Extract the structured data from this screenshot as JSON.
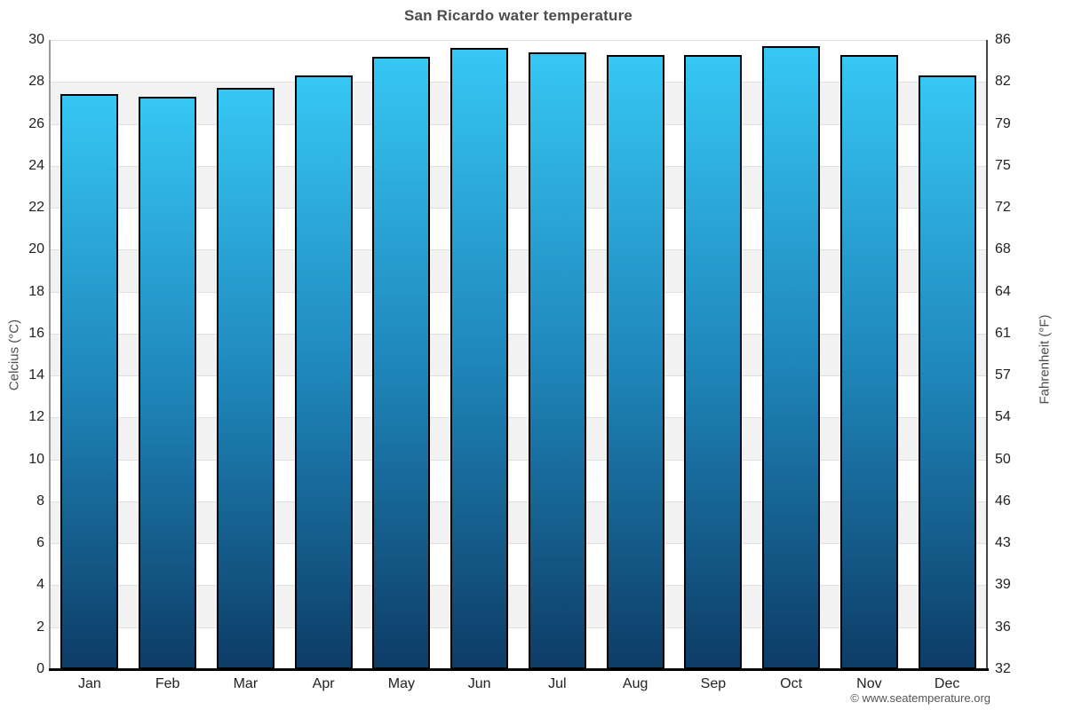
{
  "chart_data": {
    "type": "bar",
    "title": "San Ricardo water temperature",
    "categories": [
      "Jan",
      "Feb",
      "Mar",
      "Apr",
      "May",
      "Jun",
      "Jul",
      "Aug",
      "Sep",
      "Oct",
      "Nov",
      "Dec"
    ],
    "values": [
      27.4,
      27.3,
      27.7,
      28.3,
      29.2,
      29.6,
      29.4,
      29.3,
      29.3,
      29.7,
      29.3,
      28.3
    ],
    "ylabel": "Celcius (°C)",
    "y2label": "Fahrenheit (°F)",
    "ylim": [
      0,
      30
    ],
    "yticks_celsius": [
      "30",
      "28",
      "26",
      "24",
      "22",
      "20",
      "18",
      "16",
      "14",
      "12",
      "10",
      "8",
      "6",
      "4",
      "2",
      "0"
    ],
    "yticks_fahrenheit": [
      "86",
      "82",
      "79",
      "75",
      "72",
      "68",
      "64",
      "61",
      "57",
      "54",
      "50",
      "46",
      "43",
      "39",
      "36",
      "32"
    ],
    "grid": true,
    "legend": "none",
    "colors": {
      "bar_gradient_top": "#36c7f4",
      "bar_gradient_mid": "#1e84b8",
      "bar_gradient_bottom": "#0d3c66",
      "bar_border": "#000000",
      "band_alt": "#f2f2f2",
      "gridline": "#e0e0e0",
      "axis_baseline": "#000000",
      "title": "#4d4d4d"
    }
  },
  "footer": {
    "copyright": "© www.seatemperature.org"
  }
}
